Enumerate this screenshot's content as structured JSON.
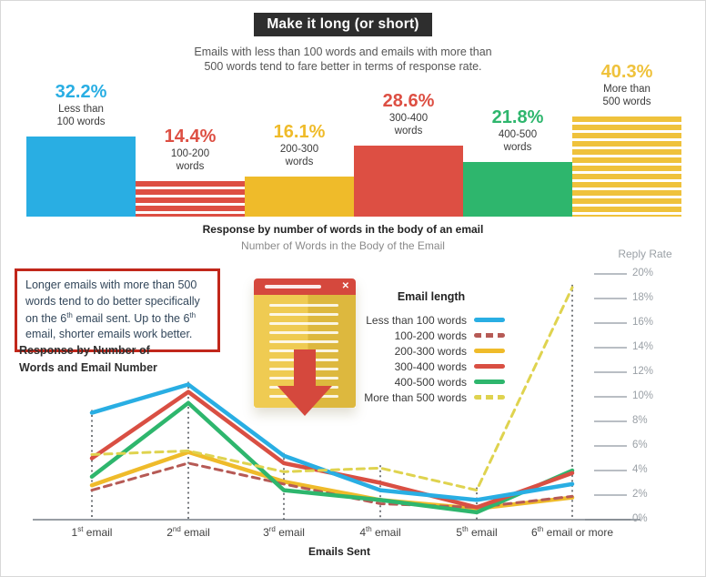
{
  "header": {
    "title_badge": "Make it long (or short)",
    "subtitle_line1": "Emails with less than 100 words and emails with more than",
    "subtitle_line2": "500 words tend to fare better in terms of response rate."
  },
  "bar_section": {
    "caption_bold": "Response by number of words in the body of an email",
    "caption_gray": "Number of Words in the Body of the Email"
  },
  "annotation": {
    "text": "Longer emails with more than 500 words tend to do better specifically on the 6th email sent. Up to the 6th email, shorter emails work better."
  },
  "line_section": {
    "heading": "Response by Number of Words and Email Number",
    "legend_title": "Email length",
    "y_axis_title": "Reply Rate",
    "x_axis_title": "Emails Sent"
  },
  "colors": {
    "blue": "#29aee3",
    "red": "#dd4f43",
    "red_dashed": "#b65a55",
    "yellow": "#efbb2a",
    "yellow_legend": "#efc23c",
    "green": "#2eb66d",
    "yellow_dashed": "#dfd34f",
    "badge_bg": "#2e2e2e",
    "annotation_border": "#c1271b",
    "axis_gray": "#9aa0a6"
  },
  "chart_data": [
    {
      "type": "bar",
      "title": "Response by number of words in the body of an email",
      "subtitle": "Number of Words in the Body of the Email",
      "unit": "%",
      "categories": [
        "Less than 100 words",
        "100-200 words",
        "200-300 words",
        "300-400 words",
        "400-500 words",
        "More than 500 words"
      ],
      "values": [
        32.2,
        14.4,
        16.1,
        28.6,
        21.8,
        40.3
      ],
      "value_labels": [
        "32.2%",
        "14.4%",
        "16.1%",
        "28.6%",
        "21.8%",
        "40.3%"
      ],
      "label_lines": [
        [
          "Less than",
          "100 words"
        ],
        [
          "100-200",
          "words"
        ],
        [
          "200-300",
          "words"
        ],
        [
          "300-400",
          "words"
        ],
        [
          "400-500",
          "words"
        ],
        [
          "More than",
          "500 words"
        ]
      ],
      "bar_colors": [
        "#29aee3",
        "#dd4f43",
        "#efbb2a",
        "#dd4f43",
        "#2eb66d",
        "#efc23c"
      ],
      "bar_patterns": [
        "solid",
        "striped",
        "solid",
        "solid",
        "solid",
        "striped"
      ],
      "ylim": [
        0,
        45
      ],
      "grid": false
    },
    {
      "type": "line",
      "title": "Response by Number of Words and Email Number",
      "xlabel": "Emails Sent",
      "ylabel": "Reply Rate",
      "x_categories": [
        "1st email",
        "2nd email",
        "3rd email",
        "4th email",
        "5th email",
        "6th email or more"
      ],
      "ylim": [
        0,
        20
      ],
      "ytick_step": 2,
      "ytick_labels": [
        "0%",
        "2%",
        "4%",
        "6%",
        "8%",
        "10%",
        "12%",
        "14%",
        "16%",
        "18%",
        "20%"
      ],
      "legend_position": "upper-left-of-plot",
      "grid": false,
      "series": [
        {
          "name": "Less than 100 words",
          "color": "#29aee3",
          "style": "solid",
          "values": [
            8.7,
            11.0,
            5.2,
            2.4,
            1.6,
            2.9
          ]
        },
        {
          "name": "100-200 words",
          "color": "#b65a55",
          "style": "dashed",
          "values": [
            2.4,
            4.6,
            2.9,
            1.3,
            1.0,
            1.9
          ]
        },
        {
          "name": "200-300 words",
          "color": "#efbb2a",
          "style": "solid",
          "values": [
            2.8,
            5.5,
            3.1,
            1.6,
            0.9,
            1.8
          ]
        },
        {
          "name": "300-400 words",
          "color": "#d94f43",
          "style": "solid",
          "values": [
            5.0,
            10.4,
            4.6,
            3.0,
            1.0,
            3.8
          ]
        },
        {
          "name": "400-500 words",
          "color": "#2eb66d",
          "style": "solid",
          "values": [
            3.5,
            9.5,
            2.4,
            1.6,
            0.6,
            4.0
          ]
        },
        {
          "name": "More than 500 words",
          "color": "#dfd34f",
          "style": "dashed",
          "values": [
            5.3,
            5.6,
            3.9,
            4.2,
            2.4,
            18.9
          ]
        }
      ]
    }
  ]
}
